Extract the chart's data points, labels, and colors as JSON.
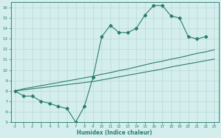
{
  "xlabel": "Humidex (Indice chaleur)",
  "xlim": [
    -0.5,
    23.5
  ],
  "ylim": [
    5,
    16.5
  ],
  "yticks": [
    5,
    6,
    7,
    8,
    9,
    10,
    11,
    12,
    13,
    14,
    15,
    16
  ],
  "xticks": [
    0,
    1,
    2,
    3,
    4,
    5,
    6,
    7,
    8,
    9,
    10,
    11,
    12,
    13,
    14,
    15,
    16,
    17,
    18,
    19,
    20,
    21,
    22,
    23
  ],
  "line_color": "#2a7d6e",
  "bg_color": "#d4eeed",
  "grid_color": "#b8d8d4",
  "line_marker_y": [
    8.0,
    7.5,
    7.5,
    7.0,
    6.8,
    6.5,
    6.3,
    5.0,
    6.5,
    9.3,
    13.2,
    14.3,
    13.6,
    13.6,
    14.0,
    15.3,
    16.2,
    16.2,
    15.2,
    15.0,
    13.2,
    13.0,
    13.2,
    null
  ],
  "line_upper_y": [
    8.0,
    8.2,
    8.35,
    8.5,
    8.65,
    8.8,
    8.95,
    9.1,
    9.25,
    9.4,
    9.6,
    9.75,
    9.95,
    10.1,
    10.3,
    10.5,
    10.7,
    10.85,
    11.05,
    11.2,
    11.4,
    11.6,
    11.75,
    11.95
  ],
  "line_lower_y": [
    8.0,
    8.1,
    8.2,
    8.3,
    8.4,
    8.5,
    8.6,
    8.7,
    8.8,
    8.9,
    9.05,
    9.2,
    9.35,
    9.5,
    9.65,
    9.8,
    9.95,
    10.1,
    10.3,
    10.45,
    10.6,
    10.75,
    10.9,
    11.05
  ]
}
